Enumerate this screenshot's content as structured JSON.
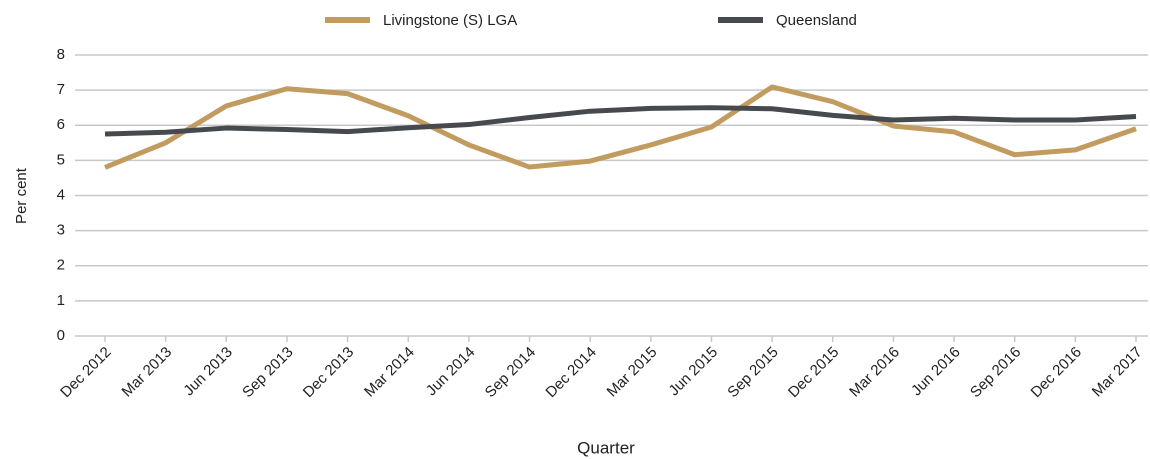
{
  "chart_data": {
    "type": "line",
    "x_label": "Quarter",
    "y_label": "Per cent",
    "categories": [
      "Dec 2012",
      "Mar 2013",
      "Jun 2013",
      "Sep 2013",
      "Dec 2013",
      "Mar 2014",
      "Jun 2014",
      "Sep 2014",
      "Dec 2014",
      "Mar 2015",
      "Jun 2015",
      "Sep 2015",
      "Dec 2015",
      "Mar 2016",
      "Jun 2016",
      "Sep 2016",
      "Dec 2016",
      "Mar 2017"
    ],
    "series": [
      {
        "name": "Livingstone (S) LGA",
        "color": "#c29b5f",
        "values": [
          4.8,
          5.5,
          6.55,
          7.04,
          6.9,
          6.27,
          5.44,
          4.81,
          4.98,
          5.44,
          5.95,
          7.09,
          6.67,
          5.98,
          5.81,
          5.16,
          5.3,
          5.9
        ]
      },
      {
        "name": "Queensland",
        "color": "#464a4f",
        "values": [
          5.75,
          5.8,
          5.92,
          5.88,
          5.82,
          5.93,
          6.02,
          6.22,
          6.4,
          6.48,
          6.5,
          6.47,
          6.28,
          6.15,
          6.2,
          6.15,
          6.15,
          6.25
        ]
      }
    ],
    "ylim": [
      0,
      8
    ],
    "yticks": [
      0,
      1,
      2,
      3,
      4,
      5,
      6,
      7,
      8
    ],
    "grid": true,
    "legend": "top"
  }
}
